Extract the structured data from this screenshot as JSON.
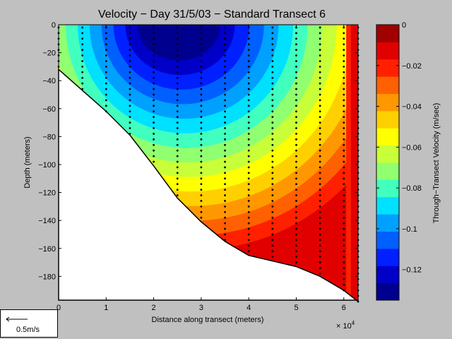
{
  "chart_data": {
    "type": "heatmap",
    "title": "Velocity − Day 31/5/03 − Standard Transect 6",
    "xlabel": "Distance along transect (meters)",
    "ylabel": "Depth (meters)",
    "x_exponent_label": "× 10",
    "x_exponent_power": "4",
    "xlim": [
      0,
      6.3
    ],
    "ylim": [
      -197,
      0
    ],
    "x_ticks": [
      "0",
      "1",
      "2",
      "3",
      "4",
      "5",
      "6"
    ],
    "y_ticks": [
      "0",
      "−20",
      "−40",
      "−60",
      "−80",
      "−100",
      "−120",
      "−140",
      "−160",
      "−180"
    ],
    "colorbar": {
      "label": "Through−Transect Velocity (m/sec)",
      "range": [
        -0.135,
        0
      ],
      "ticks": [
        "0",
        "−0.02",
        "−0.04",
        "−0.06",
        "−0.08",
        "−0.1",
        "−0.12"
      ],
      "colors": [
        "#00008f",
        "#0000c8",
        "#0020ff",
        "#0060ff",
        "#00a0ff",
        "#00e0ff",
        "#40ffbf",
        "#90ff70",
        "#c8ff38",
        "#ffff00",
        "#ffd000",
        "#ff9800",
        "#ff6000",
        "#ff2000",
        "#e00000",
        "#a00000"
      ]
    },
    "bottom_profile": [
      [
        0,
        -32
      ],
      [
        0.5,
        -47
      ],
      [
        1,
        -62
      ],
      [
        1.5,
        -79
      ],
      [
        2,
        -101
      ],
      [
        2.5,
        -124
      ],
      [
        3,
        -141
      ],
      [
        3.5,
        -155
      ],
      [
        4,
        -165
      ],
      [
        4.5,
        -169
      ],
      [
        5,
        -173
      ],
      [
        5.5,
        -180
      ],
      [
        6,
        -190
      ],
      [
        6.3,
        -198
      ]
    ],
    "stations": [
      0,
      0.5,
      1,
      1.5,
      2,
      2.5,
      3,
      3.5,
      4,
      4.5,
      5,
      5.5,
      6,
      6.3
    ],
    "field_core": {
      "x": 2.5,
      "y": 0,
      "min": -0.13
    },
    "scale_arrow_label": "0.5m/s"
  }
}
